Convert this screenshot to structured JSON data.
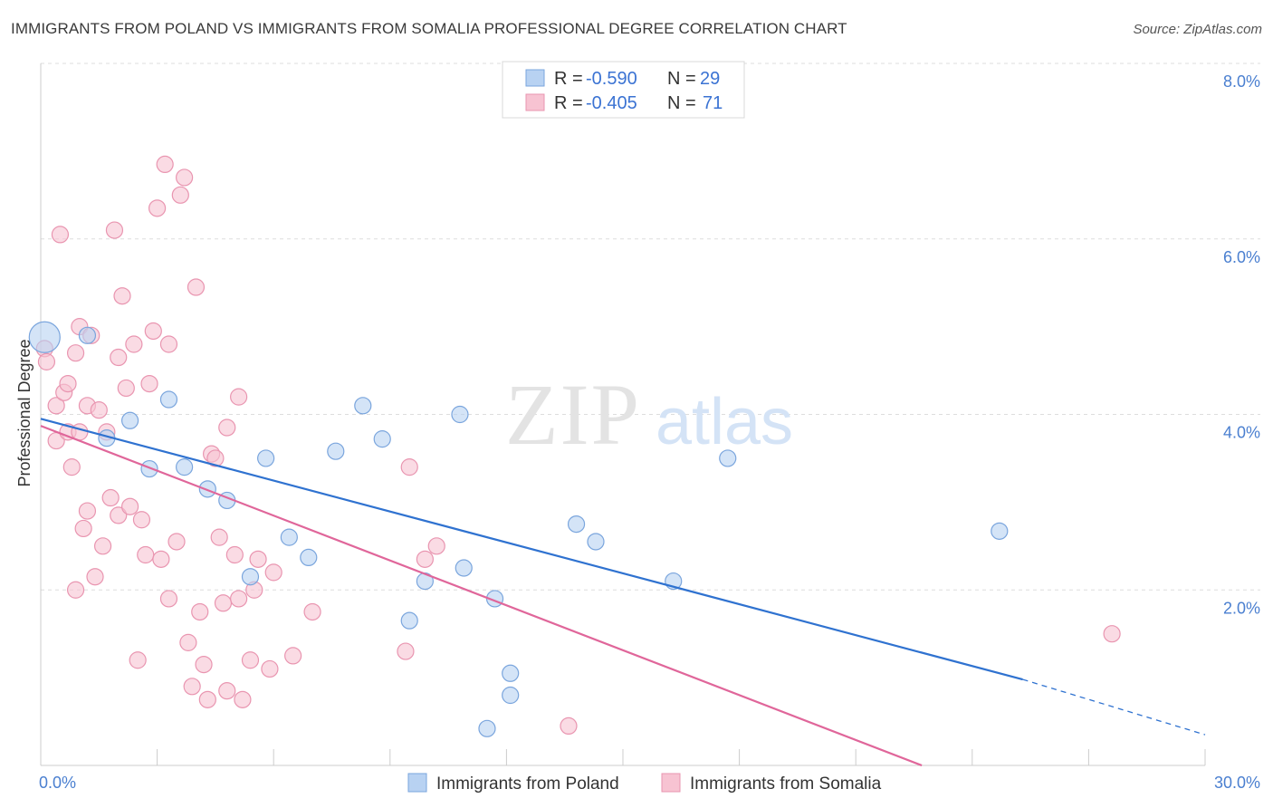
{
  "title": "IMMIGRANTS FROM POLAND VS IMMIGRANTS FROM SOMALIA PROFESSIONAL DEGREE CORRELATION CHART",
  "source": "Source: ZipAtlas.com",
  "watermark": {
    "zip": "ZIP",
    "atlas": "atlas"
  },
  "colors": {
    "poland_fill": "#b8d2f2",
    "poland_stroke": "#7aa5dd",
    "poland_line": "#2f72d0",
    "somalia_fill": "#f7c3d2",
    "somalia_stroke": "#e995b0",
    "somalia_line": "#e0669a",
    "tick_label": "#4a7fd0",
    "grid": "#dddddd"
  },
  "legend": {
    "r_label": "R =",
    "n_label": "N =",
    "rows": [
      {
        "series": "Immigrants from Poland",
        "r": "-0.590",
        "n": "29"
      },
      {
        "series": "Immigrants from Somalia",
        "r": "-0.405",
        "n": "71"
      }
    ]
  },
  "chart_data": {
    "type": "scatter",
    "ylabel": "Professional Degree",
    "xlabel": "",
    "xlim": [
      0,
      30
    ],
    "ylim": [
      0,
      8
    ],
    "x_tick_labels": [
      "0.0%",
      "30.0%"
    ],
    "y_tick_labels": [
      "2.0%",
      "4.0%",
      "6.0%",
      "8.0%"
    ],
    "y_ticks": [
      2,
      4,
      6,
      8
    ],
    "grid": true,
    "legend_position": "top-center",
    "series": [
      {
        "name": "Immigrants from Poland",
        "points": [
          [
            0.1,
            4.88
          ],
          [
            1.2,
            4.9
          ],
          [
            1.7,
            3.73
          ],
          [
            2.3,
            3.93
          ],
          [
            2.8,
            3.38
          ],
          [
            3.3,
            4.17
          ],
          [
            3.7,
            3.4
          ],
          [
            4.3,
            3.15
          ],
          [
            4.8,
            3.02
          ],
          [
            5.4,
            2.15
          ],
          [
            5.8,
            3.5
          ],
          [
            6.4,
            2.6
          ],
          [
            6.9,
            2.37
          ],
          [
            7.6,
            3.58
          ],
          [
            8.3,
            4.1
          ],
          [
            8.8,
            3.72
          ],
          [
            9.5,
            1.65
          ],
          [
            9.9,
            2.1
          ],
          [
            10.8,
            4.0
          ],
          [
            10.9,
            2.25
          ],
          [
            11.5,
            0.42
          ],
          [
            11.7,
            1.9
          ],
          [
            12.1,
            1.05
          ],
          [
            12.1,
            0.8
          ],
          [
            13.8,
            2.75
          ],
          [
            14.3,
            2.55
          ],
          [
            16.3,
            2.1
          ],
          [
            17.7,
            3.5
          ],
          [
            24.7,
            2.67
          ]
        ]
      },
      {
        "name": "Immigrants from Somalia",
        "points": [
          [
            0.1,
            4.75
          ],
          [
            0.15,
            4.6
          ],
          [
            0.4,
            4.1
          ],
          [
            0.4,
            3.7
          ],
          [
            0.5,
            6.05
          ],
          [
            0.6,
            4.25
          ],
          [
            0.7,
            4.35
          ],
          [
            0.7,
            3.8
          ],
          [
            0.8,
            3.4
          ],
          [
            0.9,
            4.7
          ],
          [
            1.0,
            3.8
          ],
          [
            1.0,
            5.0
          ],
          [
            1.1,
            2.7
          ],
          [
            1.2,
            4.1
          ],
          [
            1.2,
            2.9
          ],
          [
            1.4,
            2.15
          ],
          [
            1.5,
            4.05
          ],
          [
            1.6,
            2.5
          ],
          [
            1.7,
            3.8
          ],
          [
            1.8,
            3.05
          ],
          [
            1.9,
            6.1
          ],
          [
            2.0,
            2.85
          ],
          [
            2.1,
            5.35
          ],
          [
            2.2,
            4.3
          ],
          [
            2.3,
            2.95
          ],
          [
            2.4,
            4.8
          ],
          [
            2.5,
            1.2
          ],
          [
            2.6,
            2.8
          ],
          [
            2.7,
            2.4
          ],
          [
            2.8,
            4.35
          ],
          [
            2.9,
            4.95
          ],
          [
            3.0,
            6.35
          ],
          [
            3.1,
            2.35
          ],
          [
            3.2,
            6.85
          ],
          [
            3.3,
            1.9
          ],
          [
            3.5,
            2.55
          ],
          [
            3.6,
            6.5
          ],
          [
            3.7,
            6.7
          ],
          [
            3.8,
            1.4
          ],
          [
            3.9,
            0.9
          ],
          [
            4.0,
            5.45
          ],
          [
            4.1,
            1.75
          ],
          [
            4.2,
            1.15
          ],
          [
            4.3,
            0.75
          ],
          [
            4.4,
            3.55
          ],
          [
            4.5,
            3.5
          ],
          [
            4.6,
            2.6
          ],
          [
            4.7,
            1.85
          ],
          [
            4.8,
            0.85
          ],
          [
            5.0,
            2.4
          ],
          [
            5.1,
            4.2
          ],
          [
            5.1,
            1.9
          ],
          [
            5.2,
            0.75
          ],
          [
            5.4,
            1.2
          ],
          [
            5.5,
            2.0
          ],
          [
            5.6,
            2.35
          ],
          [
            5.9,
            1.1
          ],
          [
            6.0,
            2.2
          ],
          [
            7.0,
            1.75
          ],
          [
            9.4,
            1.3
          ],
          [
            9.5,
            3.4
          ],
          [
            9.9,
            2.35
          ],
          [
            10.2,
            2.5
          ],
          [
            13.6,
            0.45
          ],
          [
            27.6,
            1.5
          ],
          [
            1.3,
            4.9
          ],
          [
            2.0,
            4.65
          ],
          [
            3.3,
            4.8
          ],
          [
            4.8,
            3.85
          ],
          [
            0.9,
            2.0
          ],
          [
            6.5,
            1.25
          ]
        ]
      }
    ],
    "trend_lines": [
      {
        "series": "Immigrants from Poland",
        "x": [
          0,
          25.3
        ],
        "y": [
          3.95,
          0.98
        ],
        "dashed_to": [
          30,
          0.35
        ]
      },
      {
        "series": "Immigrants from Somalia",
        "x": [
          0,
          22.7
        ],
        "y": [
          3.87,
          0.0
        ]
      }
    ]
  }
}
